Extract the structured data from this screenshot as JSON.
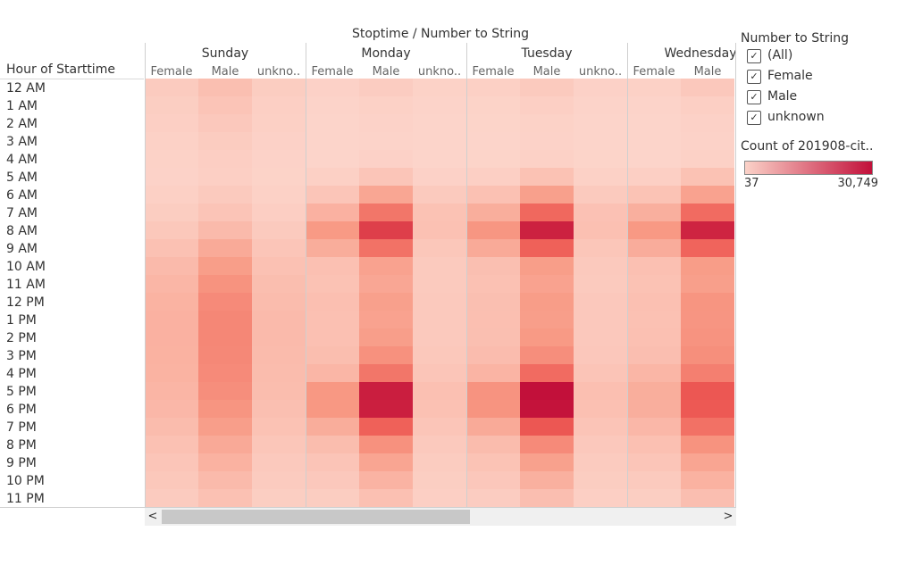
{
  "header": {
    "title": "Stoptime / Number to String",
    "row_dimension_label": "Hour of Starttime"
  },
  "legend": {
    "filter_title": "Number to String",
    "filter_items": [
      {
        "label": "(All)",
        "checked": true
      },
      {
        "label": "Female",
        "checked": true
      },
      {
        "label": "Male",
        "checked": true
      },
      {
        "label": "unknown",
        "checked": true
      }
    ],
    "color_title": "Count of 201908-cit..",
    "color_min": "37",
    "color_max": "30,749",
    "ramp_start": "#fbd2c8",
    "ramp_end": "#c2103a"
  },
  "scroll": {
    "left_arrow": "<",
    "right_arrow": ">"
  },
  "chart_data": {
    "type": "heatmap",
    "title": "Stoptime / Number to String",
    "row_label": "Hour of Starttime",
    "rows": [
      "12 AM",
      "1 AM",
      "2 AM",
      "3 AM",
      "4 AM",
      "5 AM",
      "6 AM",
      "7 AM",
      "8 AM",
      "9 AM",
      "10 AM",
      "11 AM",
      "12 PM",
      "1 PM",
      "2 PM",
      "3 PM",
      "4 PM",
      "5 PM",
      "6 PM",
      "7 PM",
      "8 PM",
      "9 PM",
      "10 PM",
      "11 PM"
    ],
    "groups": [
      {
        "name": "Sunday",
        "columns": [
          "Female",
          "Male",
          "unkno.."
        ]
      },
      {
        "name": "Monday",
        "columns": [
          "Female",
          "Male",
          "unkno.."
        ]
      },
      {
        "name": "Tuesday",
        "columns": [
          "Female",
          "Male",
          "unkno.."
        ]
      },
      {
        "name": "Wednesday",
        "columns": [
          "Female",
          "Male"
        ]
      }
    ],
    "color_range": [
      37,
      30749
    ],
    "values": {
      "Sunday": {
        "Female": [
          1600,
          1200,
          900,
          650,
          500,
          450,
          800,
          1300,
          2100,
          3200,
          4200,
          4900,
          5400,
          5600,
          5600,
          5500,
          5400,
          5100,
          4700,
          4000,
          3200,
          2600,
          2100,
          1600
        ],
        "Male": [
          3500,
          2700,
          2000,
          1500,
          1100,
          950,
          1700,
          2700,
          4200,
          6800,
          8700,
          10300,
          11500,
          12000,
          12000,
          11900,
          11500,
          11000,
          10000,
          8600,
          6900,
          5500,
          4300,
          3200
        ],
        "unkno..": [
          1300,
          1000,
          800,
          600,
          450,
          400,
          700,
          1100,
          1700,
          2500,
          3200,
          3700,
          4000,
          4200,
          4200,
          4100,
          4000,
          3800,
          3500,
          3000,
          2400,
          1900,
          1600,
          1200
        ]
      },
      "Monday": {
        "Female": [
          600,
          300,
          200,
          150,
          200,
          800,
          2600,
          5600,
          9200,
          6300,
          3300,
          3000,
          3400,
          3300,
          3300,
          3700,
          4900,
          9600,
          9600,
          6300,
          3800,
          2700,
          2000,
          1300
        ],
        "Male": [
          1400,
          700,
          450,
          350,
          600,
          2600,
          7400,
          14500,
          23000,
          15000,
          8000,
          7300,
          8300,
          8000,
          8600,
          10500,
          14500,
          28500,
          28300,
          17500,
          10600,
          7500,
          5300,
          3300
        ],
        "unkno..": [
          550,
          300,
          200,
          150,
          220,
          600,
          1700,
          3000,
          3200,
          2300,
          1800,
          1700,
          1900,
          1900,
          1900,
          2100,
          2600,
          3300,
          3200,
          2600,
          1900,
          1500,
          1200,
          900
        ]
      },
      "Tuesday": {
        "Female": [
          800,
          400,
          250,
          200,
          250,
          1000,
          3200,
          6200,
          9800,
          6700,
          3500,
          3200,
          3500,
          3400,
          3500,
          3900,
          5200,
          10200,
          10100,
          6700,
          4000,
          2900,
          2200,
          1400
        ],
        "Male": [
          1800,
          900,
          550,
          450,
          700,
          3000,
          8300,
          16500,
          28000,
          17500,
          8700,
          8000,
          8800,
          8600,
          9200,
          11000,
          16000,
          30749,
          30200,
          19000,
          11500,
          8200,
          5800,
          3600
        ],
        "unkno..": [
          600,
          320,
          220,
          170,
          240,
          650,
          1800,
          3100,
          3300,
          2400,
          1900,
          1800,
          2000,
          2000,
          2000,
          2200,
          2700,
          3400,
          3300,
          2700,
          2000,
          1600,
          1300,
          950
        ]
      },
      "Wednesday": {
        "Female": [
          700,
          350,
          230,
          180,
          230,
          900,
          2900,
          5900,
          9400,
          6400,
          3300,
          3000,
          3300,
          3200,
          3300,
          3600,
          4900,
          6200,
          6100,
          4700,
          3300,
          2500,
          1800,
          1200
        ],
        "Male": [
          2000,
          950,
          600,
          470,
          720,
          3000,
          8000,
          16000,
          27500,
          17000,
          8800,
          8400,
          10000,
          9900,
          10200,
          10900,
          13200,
          19000,
          18700,
          15200,
          10300,
          7600,
          5500,
          3600
        ]
      }
    }
  }
}
